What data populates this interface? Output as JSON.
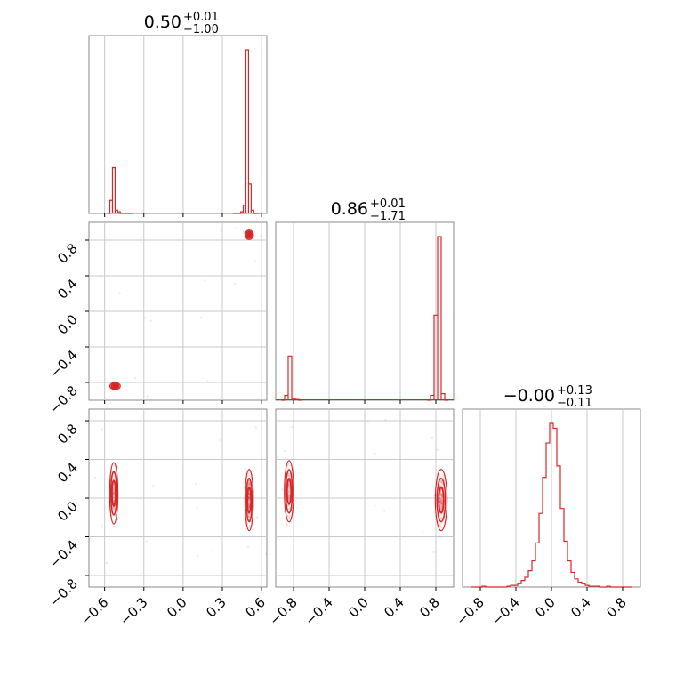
{
  "chart_data": [
    {
      "type": "histogram",
      "panel": "marginal-1",
      "title": {
        "value": "0.50",
        "upper": "+0.01",
        "lower": "−1.00"
      },
      "xlim": [
        -0.72,
        0.64
      ],
      "x_ticks": [
        "−0.6",
        "−0.3",
        "0.0",
        "0.3",
        "0.6"
      ],
      "x_tick_values": [
        -0.6,
        -0.3,
        0.0,
        0.3,
        0.6
      ],
      "bins": [
        -0.57,
        -0.55,
        -0.53,
        -0.51,
        -0.49,
        -0.47,
        -0.45,
        -0.43,
        -0.41,
        -0.39,
        0.39,
        0.41,
        0.43,
        0.45,
        0.47,
        0.49,
        0.51,
        0.53,
        0.55,
        0.57
      ],
      "counts": [
        0,
        0.08,
        0.28,
        0.02,
        0.01,
        0,
        0,
        0,
        0,
        0,
        0,
        0,
        0,
        0.01,
        0.05,
        1.0,
        0.18,
        0.02,
        0,
        0
      ],
      "color": "#d62728"
    },
    {
      "type": "histogram",
      "panel": "marginal-2",
      "title": {
        "value": "0.86",
        "upper": "+0.01",
        "lower": "−1.71"
      },
      "xlim": [
        -1.0,
        1.0
      ],
      "x_ticks": [
        "−0.8",
        "−0.4",
        "0.0",
        "0.4",
        "0.8"
      ],
      "x_tick_values": [
        -0.8,
        -0.4,
        0.0,
        0.4,
        0.8
      ],
      "bins": [
        -0.92,
        -0.88,
        -0.84,
        -0.8,
        -0.76,
        -0.72,
        0.72,
        0.76,
        0.8,
        0.84,
        0.88,
        0.92
      ],
      "counts": [
        0,
        0.03,
        0.27,
        0.01,
        0.005,
        0,
        0,
        0.03,
        0.52,
        1.0,
        0.04,
        0
      ],
      "color": "#d62728"
    },
    {
      "type": "histogram",
      "panel": "marginal-3",
      "title": {
        "value": "−0.00",
        "upper": "+0.13",
        "lower": "−0.11"
      },
      "xlim": [
        -1.0,
        1.0
      ],
      "x_ticks": [
        "−0.8",
        "−0.4",
        "0.0",
        "0.4",
        "0.8"
      ],
      "x_tick_values": [
        -0.8,
        -0.4,
        0.0,
        0.4,
        0.8
      ],
      "bin_start": -0.9,
      "bin_width": 0.04,
      "counts": [
        0,
        0,
        0,
        0.005,
        0,
        0,
        0,
        0,
        0,
        0,
        0.005,
        0.01,
        0.01,
        0.02,
        0.04,
        0.06,
        0.1,
        0.16,
        0.27,
        0.45,
        0.67,
        0.88,
        1.0,
        0.97,
        0.74,
        0.48,
        0.28,
        0.16,
        0.09,
        0.05,
        0.03,
        0.02,
        0.01,
        0.005,
        0.005,
        0.005,
        0,
        0,
        0.005,
        0,
        0,
        0,
        0,
        0,
        0
      ],
      "color": "#d62728"
    },
    {
      "type": "scatter-contour",
      "panel": "joint-1-2",
      "xlim": [
        -0.72,
        0.64
      ],
      "ylim": [
        -1.0,
        1.0
      ],
      "y_ticks": [
        "−0.8",
        "−0.4",
        "0.0",
        "0.4",
        "0.8"
      ],
      "y_tick_values": [
        -0.8,
        -0.4,
        0.0,
        0.4,
        0.8
      ],
      "clusters": [
        {
          "x": 0.505,
          "y": 0.86,
          "sx": 0.012,
          "sy": 0.02,
          "n": 60
        },
        {
          "x": -0.52,
          "y": -0.84,
          "sx": 0.015,
          "sy": 0.015,
          "n": 40
        }
      ],
      "color": "#d62728"
    },
    {
      "type": "scatter-contour",
      "panel": "joint-1-3",
      "xlim": [
        -0.72,
        0.64
      ],
      "ylim": [
        -0.92,
        0.92
      ],
      "y_ticks": [
        "−0.8",
        "−0.4",
        "0.0",
        "0.4",
        "0.8"
      ],
      "y_tick_values": [
        -0.8,
        -0.4,
        0.0,
        0.4,
        0.8
      ],
      "clusters": [
        {
          "x": 0.505,
          "y": -0.02,
          "sx": 0.012,
          "sy": 0.12,
          "n": 60
        },
        {
          "x": -0.53,
          "y": 0.05,
          "sx": 0.012,
          "sy": 0.12,
          "n": 40
        }
      ],
      "color": "#d62728"
    },
    {
      "type": "scatter-contour",
      "panel": "joint-2-3",
      "xlim": [
        -1.0,
        1.0
      ],
      "ylim": [
        -0.92,
        0.92
      ],
      "clusters": [
        {
          "x": 0.86,
          "y": -0.02,
          "sx": 0.025,
          "sy": 0.12,
          "n": 60
        },
        {
          "x": -0.85,
          "y": 0.07,
          "sx": 0.02,
          "sy": 0.12,
          "n": 40
        }
      ],
      "color": "#d62728"
    }
  ]
}
